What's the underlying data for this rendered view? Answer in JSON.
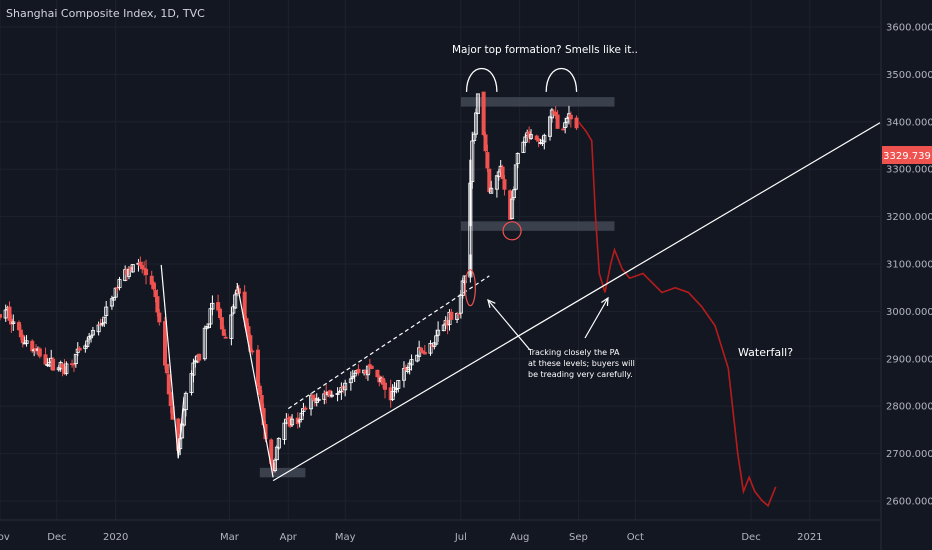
{
  "chart_data": {
    "type": "candlestick",
    "title": "Shanghai Composite Index, 1D, TVC",
    "price_label": "3329.739",
    "price_value": 3329.739,
    "y_axis": {
      "ticks": [
        2600,
        2700,
        2800,
        2900,
        3000,
        3100,
        3200,
        3300,
        3400,
        3500,
        3600
      ],
      "labels": [
        "2600.000",
        "2700.000",
        "2800.000",
        "2900.000",
        "3000.000",
        "3100.000",
        "3200.000",
        "3300.000",
        "3400.000",
        "3500.000",
        "3600.000"
      ],
      "range": [
        2560,
        3640
      ]
    },
    "x_axis": {
      "labels": [
        "Nov",
        "Dec",
        "2020",
        "Mar",
        "Apr",
        "May",
        "Jul",
        "Aug",
        "Sep",
        "Oct",
        "Dec",
        "2021"
      ],
      "dates": [
        "2019-11-01",
        "2019-12-01",
        "2020-01-01",
        "2020-03-01",
        "2020-04-01",
        "2020-05-01",
        "2020-07-01",
        "2020-08-01",
        "2020-09-01",
        "2020-10-01",
        "2020-12-01",
        "2021-01-01"
      ],
      "range": [
        "2019-11-01",
        "2021-02-07"
      ]
    },
    "price_path": [
      [
        "2019-11-01",
        2990
      ],
      [
        "2019-11-05",
        3000
      ],
      [
        "2019-11-10",
        2960
      ],
      [
        "2019-11-18",
        2920
      ],
      [
        "2019-11-28",
        2890
      ],
      [
        "2019-12-05",
        2880
      ],
      [
        "2019-12-15",
        2920
      ],
      [
        "2019-12-25",
        2980
      ],
      [
        "2020-01-05",
        3080
      ],
      [
        "2020-01-10",
        3100
      ],
      [
        "2020-01-15",
        3090
      ],
      [
        "2020-01-20",
        3060
      ],
      [
        "2020-01-23",
        3000
      ],
      [
        "2020-02-03",
        2700
      ],
      [
        "2020-02-08",
        2850
      ],
      [
        "2020-02-15",
        2920
      ],
      [
        "2020-02-22",
        3030
      ],
      [
        "2020-02-28",
        2940
      ],
      [
        "2020-03-05",
        3050
      ],
      [
        "2020-03-10",
        2960
      ],
      [
        "2020-03-15",
        2880
      ],
      [
        "2020-03-20",
        2730
      ],
      [
        "2020-03-24",
        2670
      ],
      [
        "2020-03-28",
        2760
      ],
      [
        "2020-04-06",
        2770
      ],
      [
        "2020-04-15",
        2820
      ],
      [
        "2020-04-25",
        2830
      ],
      [
        "2020-05-05",
        2870
      ],
      [
        "2020-05-15",
        2880
      ],
      [
        "2020-05-25",
        2820
      ],
      [
        "2020-06-05",
        2900
      ],
      [
        "2020-06-15",
        2930
      ],
      [
        "2020-06-25",
        2990
      ],
      [
        "2020-06-30",
        3000
      ],
      [
        "2020-07-03",
        3080
      ],
      [
        "2020-07-07",
        3350
      ],
      [
        "2020-07-10",
        3450
      ],
      [
        "2020-07-13",
        3380
      ],
      [
        "2020-07-16",
        3250
      ],
      [
        "2020-07-22",
        3300
      ],
      [
        "2020-07-27",
        3200
      ],
      [
        "2020-07-31",
        3330
      ],
      [
        "2020-08-05",
        3370
      ],
      [
        "2020-08-12",
        3350
      ],
      [
        "2020-08-18",
        3420
      ],
      [
        "2020-08-24",
        3380
      ],
      [
        "2020-08-27",
        3410
      ],
      [
        "2020-08-31",
        3390
      ]
    ],
    "projection": [
      [
        "2020-09-01",
        3400
      ],
      [
        "2020-09-05",
        3380
      ],
      [
        "2020-09-08",
        3360
      ],
      [
        "2020-09-10",
        3200
      ],
      [
        "2020-09-12",
        3080
      ],
      [
        "2020-09-15",
        3040
      ],
      [
        "2020-09-18",
        3100
      ],
      [
        "2020-09-20",
        3130
      ],
      [
        "2020-09-24",
        3090
      ],
      [
        "2020-09-28",
        3070
      ],
      [
        "2020-10-05",
        3080
      ],
      [
        "2020-10-10",
        3060
      ],
      [
        "2020-10-15",
        3040
      ],
      [
        "2020-10-22",
        3050
      ],
      [
        "2020-10-29",
        3040
      ],
      [
        "2020-11-05",
        3010
      ],
      [
        "2020-11-12",
        2970
      ],
      [
        "2020-11-19",
        2880
      ],
      [
        "2020-11-24",
        2700
      ],
      [
        "2020-11-27",
        2620
      ],
      [
        "2020-11-30",
        2650
      ],
      [
        "2020-12-03",
        2620
      ],
      [
        "2020-12-07",
        2600
      ],
      [
        "2020-12-10",
        2590
      ],
      [
        "2020-12-14",
        2630
      ]
    ],
    "annotations": {
      "top_text": "Major top formation? Smells like it..",
      "tracking_text": [
        "Tracking closely the PA",
        "at these levels; buyers will",
        "be treading very carefully."
      ],
      "waterfall_text": "Waterfall?"
    },
    "colors": {
      "background": "#131722",
      "up": "#ffffff",
      "down": "#ef5350",
      "projection": "#b71c1c",
      "zone": "#4a4f5c",
      "price_tag": "#ef5350"
    }
  }
}
